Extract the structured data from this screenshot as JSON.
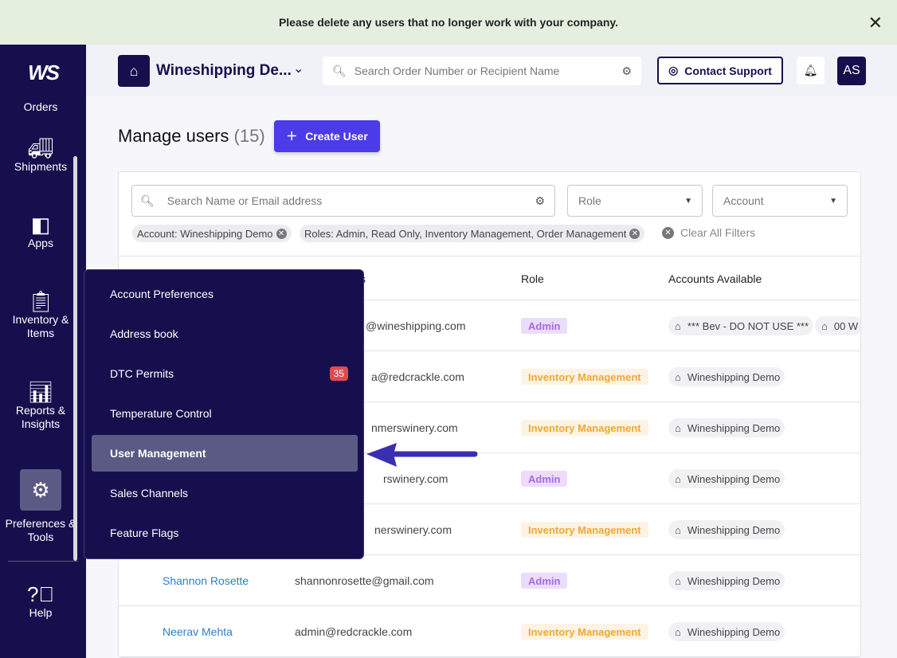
{
  "banner": {
    "text": "Please delete any users that no longer work with your company.",
    "close": "✕"
  },
  "sidebar": {
    "logo": "WS",
    "items": [
      {
        "label": "Orders"
      },
      {
        "label": "Shipments"
      },
      {
        "label": "Apps"
      },
      {
        "label": "Inventory & Items"
      },
      {
        "label": "Reports & Insights"
      },
      {
        "label": "Preferences & Tools"
      },
      {
        "label": "Help"
      }
    ]
  },
  "header": {
    "account": "Wineshipping De...",
    "search_placeholder": "Search Order Number or Recipient Name",
    "contact": "Contact Support",
    "avatar": "AS"
  },
  "page": {
    "title": "Manage users",
    "count": "(15)",
    "create": "Create User"
  },
  "filters": {
    "search_placeholder": "Search Name or Email address",
    "role": "Role",
    "account": "Account",
    "chips": [
      "Account: Wineshipping Demo",
      "Roles: Admin, Read Only, Inventory Management, Order Management"
    ],
    "clear": "Clear All Filters"
  },
  "table": {
    "headers": {
      "email": "s",
      "role": "Role",
      "accounts": "Accounts Available"
    },
    "rows": [
      {
        "name": "",
        "email": "@wineshipping.com",
        "role": "Admin",
        "accounts": [
          "*** Bev - DO NOT USE ***",
          "00 W"
        ]
      },
      {
        "name": "",
        "email": "a@redcrackle.com",
        "role": "Inventory Management",
        "accounts": [
          "Wineshipping Demo"
        ]
      },
      {
        "name": "",
        "email": "nmerswinery.com",
        "role": "Inventory Management",
        "accounts": [
          "Wineshipping Demo"
        ]
      },
      {
        "name": "",
        "email": "rswinery.com",
        "role": "Admin",
        "accounts": [
          "Wineshipping Demo"
        ]
      },
      {
        "name": "",
        "email": "nerswinery.com",
        "role": "Inventory Management",
        "accounts": [
          "Wineshipping Demo"
        ]
      },
      {
        "name": "Shannon Rosette",
        "email": "shannonrosette@gmail.com",
        "role": "Admin",
        "accounts": [
          "Wineshipping Demo"
        ]
      },
      {
        "name": "Neerav Mehta",
        "email": "admin@redcrackle.com",
        "role": "Inventory Management",
        "accounts": [
          "Wineshipping Demo"
        ]
      }
    ]
  },
  "menu": {
    "items": [
      "Account Preferences",
      "Address book",
      "DTC Permits",
      "Temperature Control",
      "User Management",
      "Sales Channels",
      "Feature Flags"
    ],
    "dtc_badge": "35",
    "active": "User Management"
  },
  "colors": {
    "sidebar": "#15104d",
    "primary": "#4b3be8",
    "arrow": "#3a2fb0"
  }
}
